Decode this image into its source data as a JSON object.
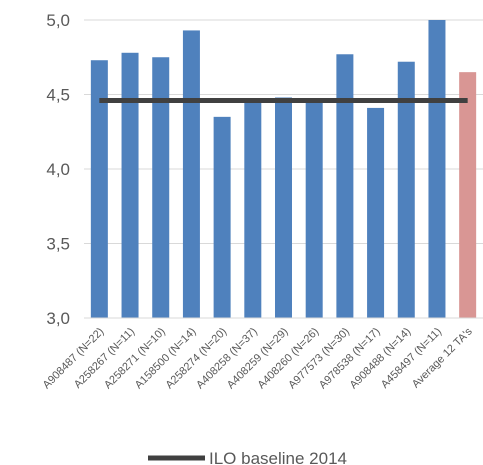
{
  "chart_data": {
    "type": "bar",
    "title": "",
    "xlabel": "",
    "ylabel": "",
    "ylim": [
      3.0,
      5.0
    ],
    "yticks": [
      "3,0",
      "3,5",
      "4,0",
      "4,5",
      "5,0"
    ],
    "ytick_values": [
      3.0,
      3.5,
      4.0,
      4.5,
      5.0
    ],
    "grid": "horizontal",
    "categories": [
      "A908487 (N=22)",
      "A258267  (N=11)",
      "A258271 (N=10)",
      "A158500 (N=14)",
      "A258274 (N=20)",
      "A408258 (N=37)",
      "A408259 (N=29)",
      "A408260 (N=26)",
      "A977573 (N=30)",
      "A978538 (N=17)",
      "A908488 (N=14)",
      "A458497 (N=11)",
      "Average 12 TA's"
    ],
    "values": [
      4.73,
      4.78,
      4.75,
      4.93,
      4.35,
      4.46,
      4.48,
      4.46,
      4.77,
      4.41,
      4.72,
      5.0,
      4.65
    ],
    "bar_colors": [
      "#4f81bd",
      "#4f81bd",
      "#4f81bd",
      "#4f81bd",
      "#4f81bd",
      "#4f81bd",
      "#4f81bd",
      "#4f81bd",
      "#4f81bd",
      "#4f81bd",
      "#4f81bd",
      "#4f81bd",
      "#d99694"
    ],
    "baseline": {
      "name": "ILO baseline 2014",
      "value": 4.46,
      "color": "#404040"
    },
    "legend_position": "bottom"
  }
}
